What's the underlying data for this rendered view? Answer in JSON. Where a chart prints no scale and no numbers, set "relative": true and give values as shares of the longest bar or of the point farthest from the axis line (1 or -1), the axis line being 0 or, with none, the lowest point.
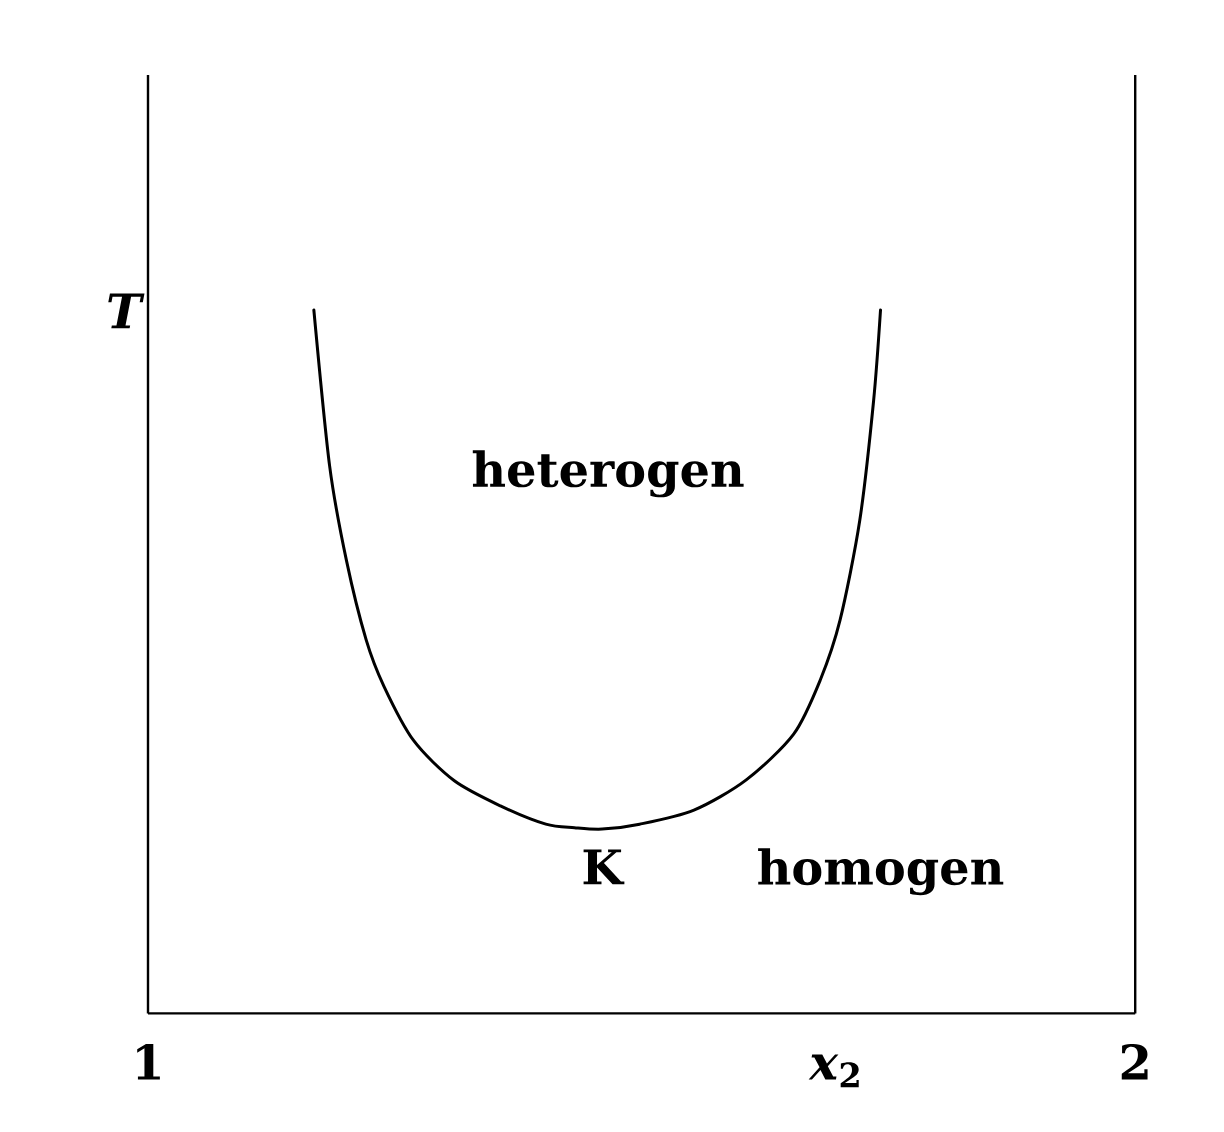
{
  "chart_data": {
    "type": "line",
    "xlabel": "*x*$_{2}$",
    "ylabel": "T",
    "relative": true,
    "x": [
      1.168,
      1.184,
      1.201,
      1.221,
      1.239,
      1.269,
      1.31,
      1.357,
      1.403,
      1.432,
      1.46,
      1.498,
      1.553,
      1.606,
      1.654,
      1.681,
      1.701,
      1.721,
      1.735,
      1.742
    ],
    "series": [
      {
        "color": "#000000",
        "values": [
          1.0,
          0.778,
          0.644,
          0.531,
          0.465,
          0.388,
          0.331,
          0.295,
          0.269,
          0.264,
          0.262,
          0.269,
          0.289,
          0.332,
          0.397,
          0.474,
          0.559,
          0.701,
          0.871,
          1.0
        ]
      }
    ],
    "xlim": [
      1,
      2
    ],
    "xticks": [
      1,
      2
    ],
    "annotations": [
      "heterogen",
      {
        "text": "K",
        "x": 1.46,
        "y": 0.262
      },
      "homogen"
    ],
    "marker": "none",
    "line_style": "solid"
  }
}
